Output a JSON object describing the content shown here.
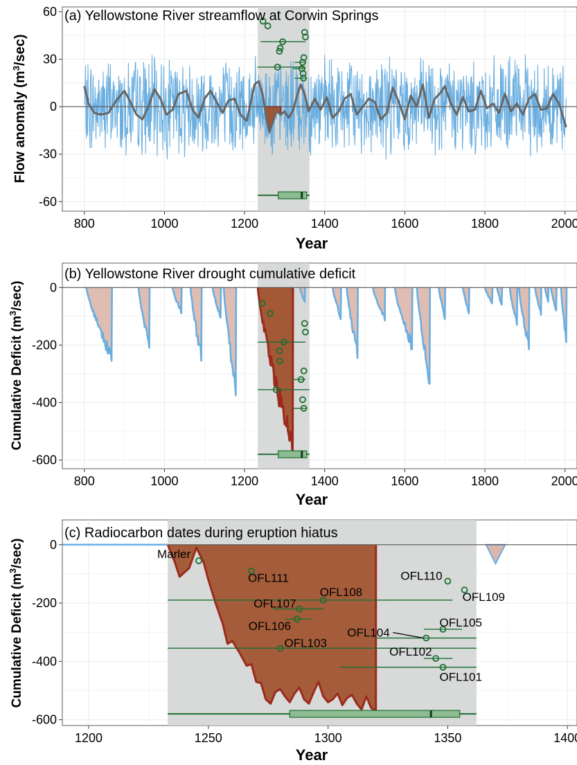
{
  "colors": {
    "streamflow": "#6aaee0",
    "smooth": "#666666",
    "drought_fill": "#a0522d",
    "drought_line": "#9b2a1e",
    "deficit_fill": "#dcb6ab",
    "deficit_line": "#6aaee0",
    "hiatus_shade": "#d3d6d4",
    "dates": "#1e6e32",
    "box_fill": "#8dbb92",
    "grid": "#ebebeb",
    "zero": "#555555"
  },
  "chart_data": [
    {
      "type": "line",
      "title": "(a) Yellowstone River streamflow at Corwin Springs",
      "xlabel": "Year",
      "ylabel": "Flow anomaly (m3/sec)",
      "ylabel_parts": {
        "pre": "Flow anomaly (m",
        "sup": "3",
        "post": "/sec)"
      },
      "xlim": [
        745,
        2030
      ],
      "ylim": [
        -66,
        63
      ],
      "xticks": [
        800,
        1000,
        1200,
        1400,
        1600,
        1800,
        2000
      ],
      "yticks": [
        -60,
        -30,
        0,
        30,
        60
      ],
      "ytick_labels": [
        "-60",
        "-30",
        "0",
        "30",
        "60"
      ],
      "hiatus": [
        1233,
        1362
      ],
      "series": [
        {
          "name": "annual flow anomaly (noisy)",
          "x_range": [
            800,
            2003
          ],
          "amplitude": 25
        },
        {
          "name": "smoothed",
          "x": [
            800,
            810,
            825,
            840,
            860,
            880,
            900,
            915,
            930,
            945,
            960,
            975,
            990,
            1005,
            1020,
            1035,
            1055,
            1070,
            1085,
            1100,
            1115,
            1130,
            1145,
            1160,
            1175,
            1190,
            1205,
            1215,
            1225,
            1235,
            1245,
            1255,
            1262,
            1270,
            1280,
            1290,
            1300,
            1310,
            1320,
            1330,
            1340,
            1350,
            1360,
            1375,
            1390,
            1405,
            1420,
            1435,
            1450,
            1465,
            1480,
            1495,
            1510,
            1525,
            1540,
            1555,
            1570,
            1585,
            1600,
            1615,
            1630,
            1645,
            1660,
            1675,
            1690,
            1700,
            1715,
            1730,
            1745,
            1760,
            1775,
            1790,
            1805,
            1820,
            1835,
            1850,
            1865,
            1880,
            1895,
            1910,
            1925,
            1940,
            1955,
            1970,
            1985,
            2003
          ],
          "y": [
            13,
            2,
            -4,
            -5,
            -4,
            4,
            10,
            3,
            -5,
            -8,
            0,
            11,
            5,
            -5,
            -2,
            8,
            10,
            -2,
            -7,
            5,
            10,
            3,
            -4,
            4,
            5,
            -5,
            -9,
            2,
            14,
            16,
            8,
            -8,
            -16,
            -10,
            -3,
            -5,
            -3,
            -7,
            -3,
            6,
            14,
            8,
            -3,
            5,
            -2,
            6,
            -7,
            -3,
            5,
            8,
            -5,
            0,
            5,
            3,
            -8,
            -4,
            12,
            3,
            -8,
            7,
            0,
            14,
            -7,
            5,
            9,
            13,
            2,
            -5,
            6,
            -3,
            -2,
            10,
            -1,
            2,
            -4,
            8,
            -3,
            2,
            -5,
            5,
            8,
            -2,
            -1,
            8,
            2,
            -13
          ]
        },
        {
          "name": "drought 1250-1290 (filled)",
          "x_range": [
            1250,
            1290
          ]
        }
      ],
      "dates_rows": [
        {
          "y": 54,
          "mid": 1246
        },
        {
          "y": 51,
          "mid": 1258
        },
        {
          "y": 47,
          "mid": 1350
        },
        {
          "y": 44,
          "mid": 1352
        },
        {
          "y": 41,
          "mid": 1295,
          "bar": [
            1240,
            1352
          ]
        },
        {
          "y": 37,
          "mid": 1289
        },
        {
          "y": 35,
          "mid": 1287
        },
        {
          "y": 31,
          "mid": 1348
        },
        {
          "y": 28,
          "mid": 1345,
          "bar": [
            1325,
            1350
          ]
        },
        {
          "y": 25,
          "mid": 1282,
          "bar": [
            1232,
            1352
          ]
        },
        {
          "y": 24,
          "mid": 1343,
          "bar": [
            1320,
            1352
          ]
        },
        {
          "y": 21,
          "mid": 1346
        },
        {
          "y": 18,
          "mid": 1347,
          "bar": [
            1325,
            1355
          ]
        }
      ],
      "boxplot": {
        "y": -56,
        "whisker": [
          1233,
          1362
        ],
        "box": [
          1284,
          1355
        ],
        "median": 1343
      }
    },
    {
      "type": "area",
      "title": "(b) Yellowstone River drought cumulative deficit",
      "xlabel": "Year",
      "ylabel": "Cumulative Deficit (m3/sec)",
      "ylabel_parts": {
        "pre": "Cumulative Deficit (m",
        "sup": "3",
        "post": "/sec)"
      },
      "xlim": [
        745,
        2030
      ],
      "ylim": [
        -630,
        85
      ],
      "xticks": [
        800,
        1000,
        1200,
        1400,
        1600,
        1800,
        2000
      ],
      "yticks": [
        -600,
        -400,
        -200,
        0
      ],
      "ytick_labels": [
        "-600",
        "-400",
        "-200",
        "0"
      ],
      "hiatus": [
        1233,
        1362
      ],
      "episodes": [
        {
          "start": 805,
          "end": 868,
          "min": -255
        },
        {
          "start": 935,
          "end": 962,
          "min": -210
        },
        {
          "start": 1020,
          "end": 1042,
          "min": -90
        },
        {
          "start": 1065,
          "end": 1092,
          "min": -255
        },
        {
          "start": 1120,
          "end": 1140,
          "min": -105
        },
        {
          "start": 1148,
          "end": 1178,
          "min": -375
        },
        {
          "start": 1233,
          "end": 1320,
          "min": -590,
          "highlight": true
        },
        {
          "start": 1338,
          "end": 1350,
          "min": -50
        },
        {
          "start": 1420,
          "end": 1440,
          "min": -110
        },
        {
          "start": 1455,
          "end": 1482,
          "min": -245
        },
        {
          "start": 1520,
          "end": 1550,
          "min": -115
        },
        {
          "start": 1575,
          "end": 1618,
          "min": -215
        },
        {
          "start": 1630,
          "end": 1662,
          "min": -335
        },
        {
          "start": 1685,
          "end": 1700,
          "min": -110
        },
        {
          "start": 1745,
          "end": 1760,
          "min": -90
        },
        {
          "start": 1800,
          "end": 1818,
          "min": -55
        },
        {
          "start": 1830,
          "end": 1842,
          "min": -60
        },
        {
          "start": 1862,
          "end": 1880,
          "min": -130
        },
        {
          "start": 1885,
          "end": 1910,
          "min": -215
        },
        {
          "start": 1925,
          "end": 1940,
          "min": -95
        },
        {
          "start": 1950,
          "end": 1958,
          "min": -50
        },
        {
          "start": 1965,
          "end": 1978,
          "min": -80
        },
        {
          "start": 1990,
          "end": 2003,
          "min": -190
        }
      ],
      "dates": [
        {
          "x": 1244,
          "y": -55
        },
        {
          "x": 1264,
          "y": -90
        },
        {
          "x": 1350,
          "y": -125
        },
        {
          "x": 1352,
          "y": -155
        },
        {
          "x": 1298,
          "y": -190,
          "bar": [
            1233,
            1352
          ]
        },
        {
          "x": 1287,
          "y": -220
        },
        {
          "x": 1288,
          "y": -255
        },
        {
          "x": 1348,
          "y": -290
        },
        {
          "x": 1341,
          "y": -320,
          "bar": [
            1320,
            1352
          ]
        },
        {
          "x": 1279,
          "y": -355,
          "bar": [
            1233,
            1362
          ]
        },
        {
          "x": 1345,
          "y": -390
        },
        {
          "x": 1348,
          "y": -420,
          "bar": [
            1322,
            1355
          ]
        }
      ],
      "boxplot": {
        "y": -580,
        "whisker": [
          1233,
          1362
        ],
        "box": [
          1284,
          1355
        ],
        "median": 1343
      }
    },
    {
      "type": "area",
      "title": "(c) Radiocarbon dates during eruption hiatus",
      "xlabel": "Year",
      "ylabel": "Cumulative Deficit (m3/sec)",
      "ylabel_parts": {
        "pre": "Cumulative Deficit (m",
        "sup": "3",
        "post": "/sec)"
      },
      "xlim": [
        1189,
        1404
      ],
      "ylim": [
        -620,
        85
      ],
      "xticks": [
        1200,
        1250,
        1300,
        1350,
        1400
      ],
      "yticks": [
        -600,
        -400,
        -200,
        0
      ],
      "ytick_labels": [
        "-600",
        "-400",
        "-200",
        "0"
      ],
      "hiatus": [
        1233,
        1362
      ],
      "deficit_profile": {
        "x": [
          1233,
          1236,
          1238,
          1240,
          1242,
          1245,
          1248,
          1250,
          1253,
          1256,
          1258,
          1260,
          1263,
          1266,
          1268,
          1270,
          1272,
          1274,
          1276,
          1278,
          1280,
          1282,
          1284,
          1286,
          1288,
          1290,
          1292,
          1294,
          1296,
          1298,
          1300,
          1302,
          1304,
          1306,
          1308,
          1310,
          1312,
          1314,
          1316,
          1318,
          1320
        ],
        "y": [
          0,
          -60,
          -110,
          -95,
          -80,
          -10,
          -60,
          -120,
          -200,
          -270,
          -340,
          -330,
          -370,
          -415,
          -410,
          -470,
          -475,
          -530,
          -545,
          -505,
          -495,
          -520,
          -540,
          -510,
          -490,
          -530,
          -545,
          -505,
          -470,
          -520,
          -540,
          -530,
          -510,
          -550,
          -525,
          -515,
          -545,
          -565,
          -520,
          -560,
          -570
        ]
      },
      "small_episode": {
        "start": 1366,
        "end": 1374,
        "min": -65
      },
      "dates": [
        {
          "label": "Marler",
          "x": 1246,
          "y": -55
        },
        {
          "label": "OFL111",
          "x": 1268,
          "y": -90
        },
        {
          "label": "OFL110",
          "x": 1350,
          "y": -125
        },
        {
          "label": "OFL109",
          "x": 1357,
          "y": -155
        },
        {
          "label": "OFL108",
          "x": 1298,
          "y": -190,
          "bar": [
            1233,
            1352
          ]
        },
        {
          "label": "OFL107",
          "x": 1288,
          "y": -220,
          "bar": [
            1277,
            1298
          ]
        },
        {
          "label": "OFL106",
          "x": 1287,
          "y": -255,
          "bar": [
            1282,
            1293
          ]
        },
        {
          "label": "OFL105",
          "x": 1348,
          "y": -290,
          "bar": [
            1340,
            1356
          ]
        },
        {
          "label": "OFL104",
          "x": 1341,
          "y": -320,
          "bar": [
            1320,
            1362
          ]
        },
        {
          "label": "OFL103",
          "x": 1280,
          "y": -355,
          "bar": [
            1233,
            1362
          ]
        },
        {
          "label": "OFL102",
          "x": 1345,
          "y": -390,
          "bar": [
            1340,
            1352
          ]
        },
        {
          "label": "OFL101",
          "x": 1348,
          "y": -420,
          "bar": [
            1305,
            1362
          ]
        }
      ],
      "boxplot": {
        "y": -580,
        "whisker": [
          1233,
          1362
        ],
        "box": [
          1284,
          1355
        ],
        "median": 1343
      }
    }
  ]
}
